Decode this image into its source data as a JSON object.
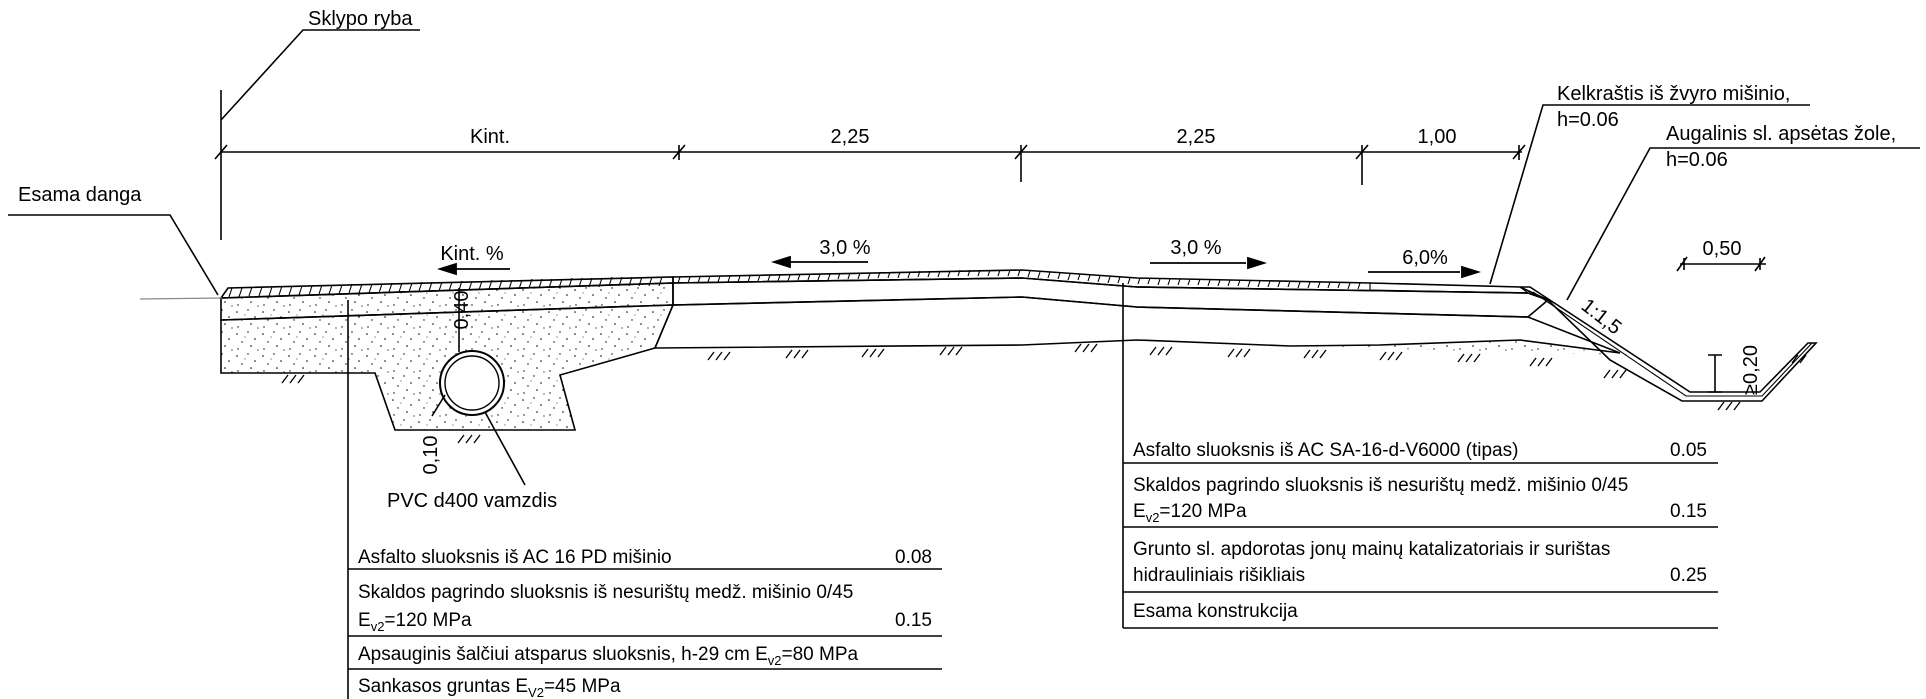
{
  "labels": {
    "sklypo_ryba": "Sklypo ryba",
    "esama_danga": "Esama danga",
    "kelkrastis_line1": "Kelkraštis iš žvyro mišinio,",
    "kelkrastis_line2": "h=0.06",
    "augalinis_line1": "Augalinis sl. apsėtas žole,",
    "augalinis_line2": "h=0.06",
    "pvc": "PVC d400 vamzdis",
    "slope_ratio": "1:1,5"
  },
  "dimensions": {
    "kint": "Kint.",
    "d1": "2,25",
    "d2": "2,25",
    "d3": "1,00",
    "d_050": "0,50",
    "d_020": "≥0,20",
    "d_040": "0,40",
    "d_010": "0,10"
  },
  "slopes": {
    "left": "Kint. %",
    "mid_left": "3,0 %",
    "mid_right": "3,0 %",
    "right": "6,0%"
  },
  "left_table": [
    {
      "text": "Asfalto sluoksnis iš AC 16 PD mišinio",
      "value": "0.08"
    },
    {
      "text": "Skaldos pagrindo sluoksnis iš nesurištų medž. mišinio 0/45",
      "ev_main": "E",
      "ev_sub": "v2",
      "ev_rest": "=120 MPa",
      "value": "0.15"
    },
    {
      "text": "Apsauginis šalčiui atsparus sluoksnis, h-29 cm  E",
      "ev_sub": "v2",
      "ev_rest": "=80 MPa",
      "value": ""
    },
    {
      "text": "Sankasos gruntas E",
      "ev_sub": "V2",
      "ev_rest": "=45 MPa",
      "value": ""
    }
  ],
  "right_table": [
    {
      "text": "Asfalto sluoksnis iš AC SA-16-d-V6000 (tipas)",
      "value": "0.05"
    },
    {
      "text": "Skaldos pagrindo sluoksnis iš nesurištų medž. mišinio 0/45",
      "ev_main": "E",
      "ev_sub": "v2",
      "ev_rest": "=120 MPa",
      "value": "0.15"
    },
    {
      "text": "Grunto sl. apdorotas jonų mainų katalizatoriais ir surištas",
      "line2": "hidrauliniais rišikliais",
      "value": "0.25"
    },
    {
      "text": "Esama konstrukcija",
      "value": ""
    }
  ]
}
